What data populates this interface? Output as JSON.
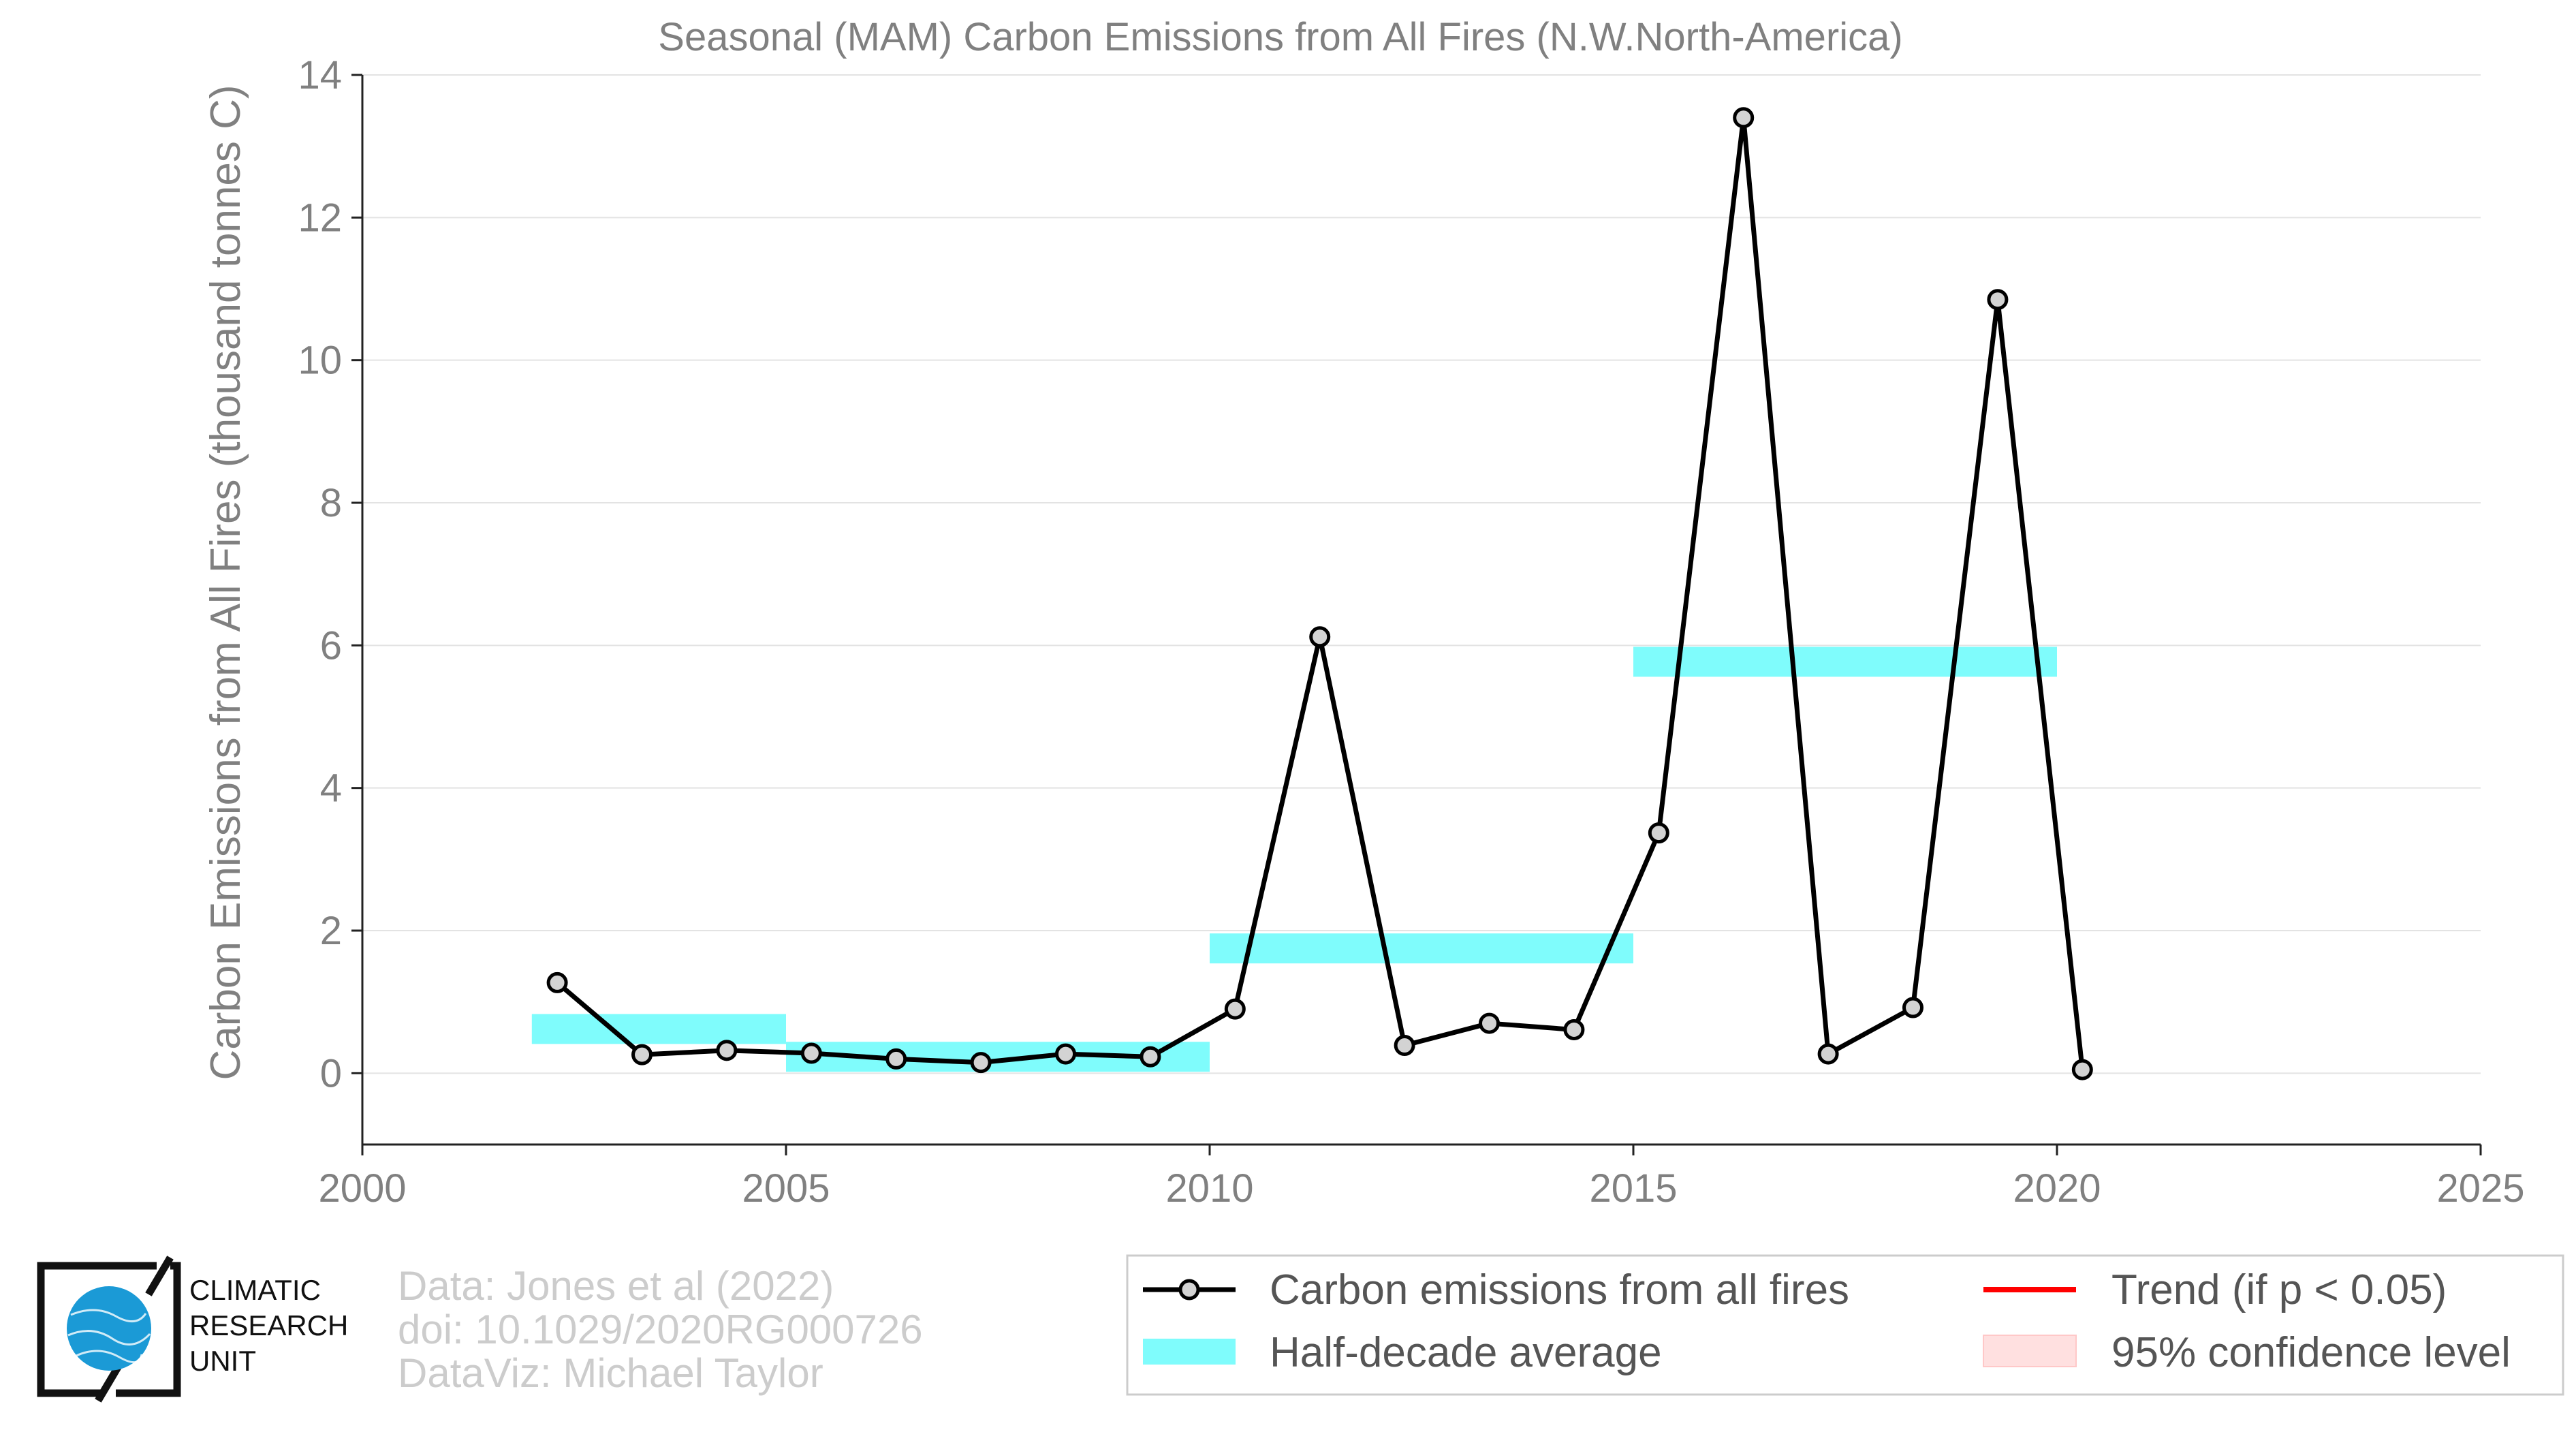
{
  "chart_data": {
    "type": "line",
    "title": "Seasonal (MAM) Carbon Emissions from All Fires (N.W.North-America)",
    "ylabel": "Carbon Emissions from All Fires (thousand tonnes C)",
    "xlabel": "",
    "xlim": [
      2000,
      2025
    ],
    "ylim": [
      -1,
      14
    ],
    "xticks": [
      2000,
      2005,
      2010,
      2015,
      2020,
      2025
    ],
    "yticks": [
      0,
      2,
      4,
      6,
      8,
      10,
      12,
      14
    ],
    "grid": true,
    "legend_position": "bottom-right",
    "series": [
      {
        "name": "Carbon emissions from all fires",
        "color": "#000000",
        "marker_color": "#d3d3d3",
        "x": [
          2002.3,
          2003.3,
          2004.3,
          2005.3,
          2006.3,
          2007.3,
          2008.3,
          2009.3,
          2010.3,
          2011.3,
          2012.3,
          2013.3,
          2014.3,
          2015.3,
          2016.3,
          2017.3,
          2018.3,
          2019.3,
          2020.3
        ],
        "y": [
          1.27,
          0.26,
          0.32,
          0.28,
          0.2,
          0.15,
          0.27,
          0.23,
          0.9,
          6.12,
          0.39,
          0.7,
          0.61,
          3.37,
          13.4,
          0.27,
          0.92,
          10.85,
          0.05
        ]
      },
      {
        "name": "Half-decade average",
        "color": "#7ffcfc",
        "segments": [
          {
            "x0": 2002,
            "x1": 2005,
            "y": 0.62
          },
          {
            "x0": 2005,
            "x1": 2010,
            "y": 0.23
          },
          {
            "x0": 2010,
            "x1": 2015,
            "y": 1.75
          },
          {
            "x0": 2015,
            "x1": 2020,
            "y": 5.77
          }
        ]
      }
    ],
    "legend": [
      {
        "label": "Carbon emissions from all fires",
        "kind": "line-marker",
        "color": "#000000"
      },
      {
        "label": "Half-decade average",
        "kind": "band",
        "color": "#7ffcfc"
      },
      {
        "label": "Trend (if p < 0.05)",
        "kind": "line",
        "color": "#ff0000"
      },
      {
        "label": "95% confidence level",
        "kind": "patch",
        "color": "#ffe0e0"
      }
    ]
  },
  "credits": {
    "line1": "Data: Jones et al (2022)",
    "line2": "doi: 10.1029/2020RG000726",
    "line3": "DataViz: Michael Taylor"
  },
  "logo": {
    "line1": "CLIMATIC",
    "line2": "RESEARCH",
    "line3": "UNIT",
    "globe_color": "#1b9ad6"
  }
}
